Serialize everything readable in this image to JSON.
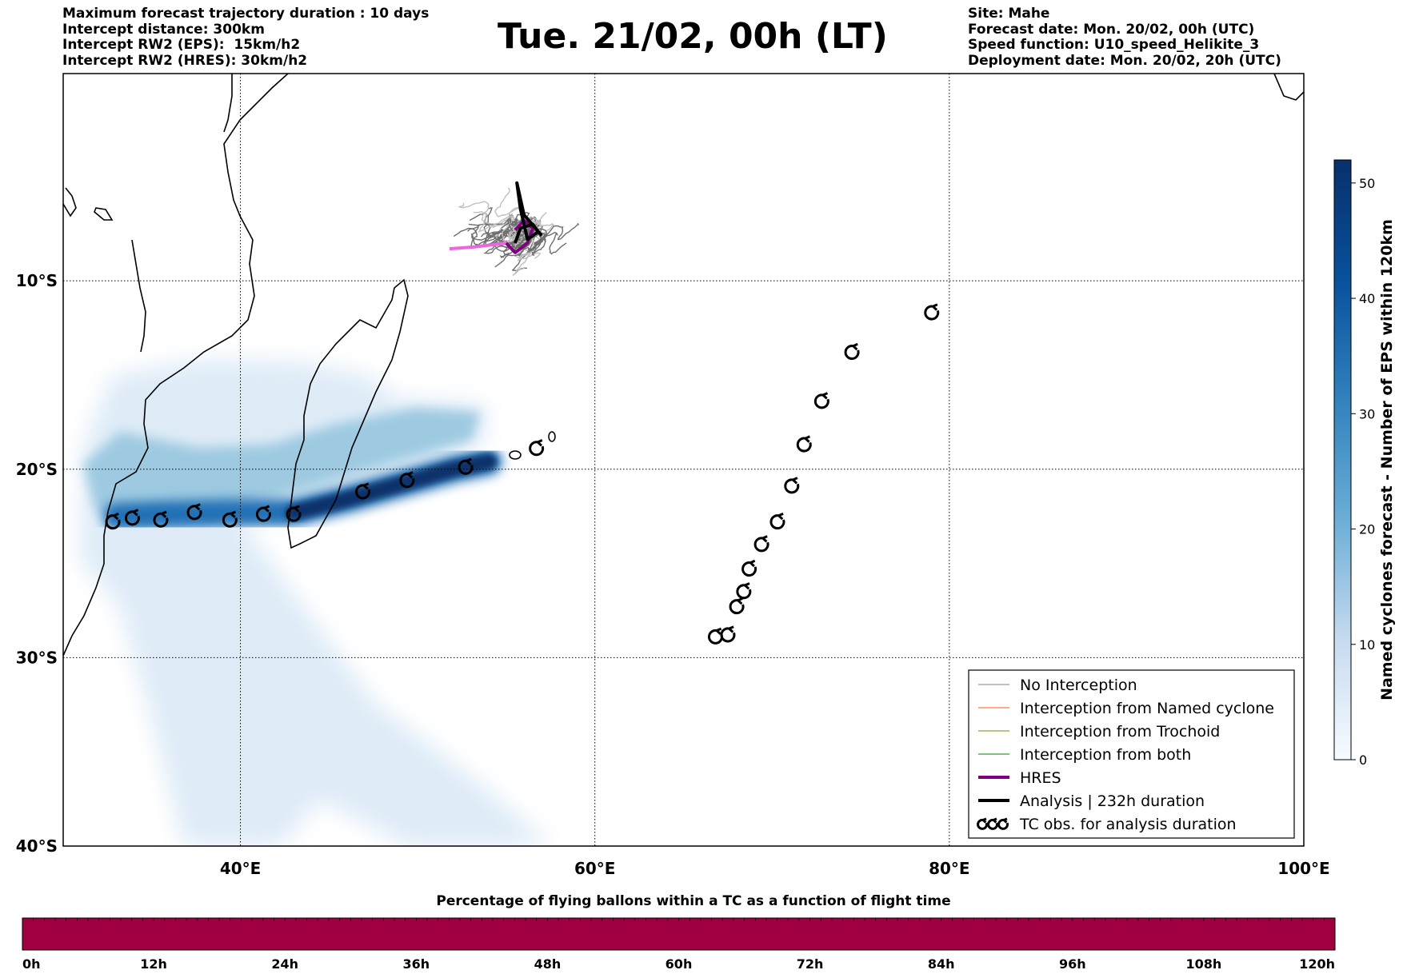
{
  "header_left": {
    "line1": "Maximum forecast trajectory duration : 10 days",
    "line2": "Intercept distance: 300km",
    "line3": "Intercept RW2 (EPS):  15km/h2",
    "line4": "Intercept RW2 (HRES): 30km/h2"
  },
  "title": "Tue. 21/02, 00h (LT)",
  "header_right": {
    "line1": "Site: Mahe",
    "line2": "Forecast date: Mon. 20/02, 00h (UTC)",
    "line3": "Speed function: U10_speed_Helikite_3",
    "line4": "Deployment date: Mon. 20/02, 20h (UTC)"
  },
  "map": {
    "lon_range": [
      30,
      100
    ],
    "lat_range": [
      -40,
      1
    ],
    "lat_gridlines": [
      -10,
      -20,
      -30
    ],
    "lon_gridlines": [
      40,
      60,
      80
    ],
    "lat_labels": [
      {
        "lat": -10,
        "text": "10°S"
      },
      {
        "lat": -20,
        "text": "20°S"
      },
      {
        "lat": -30,
        "text": "30°S"
      },
      {
        "lat": -40,
        "text": "40°S"
      }
    ],
    "lon_labels": [
      {
        "lon": 40,
        "text": "40°E"
      },
      {
        "lon": 60,
        "text": "60°E"
      },
      {
        "lon": 80,
        "text": "80°E"
      },
      {
        "lon": 100,
        "text": "100°E"
      }
    ],
    "colors": {
      "no_interception": "#808080",
      "named_cyclone": "#ff5500",
      "trochoid": "#808000",
      "both": "#008000",
      "hres": "#800080",
      "analysis": "#000000",
      "density_dark": "#08306b",
      "density_light": "#deebf7",
      "flight_bar": "#a0003f"
    },
    "density_track_core": [
      [
        33,
        -22.5
      ],
      [
        36,
        -22.4
      ],
      [
        40,
        -22.3
      ],
      [
        43,
        -22.3
      ],
      [
        46,
        -21.6
      ],
      [
        49,
        -20.8
      ],
      [
        52,
        -20.0
      ],
      [
        54,
        -19.6
      ]
    ],
    "tc_east_track": [
      [
        66.8,
        -28.9
      ],
      [
        67.5,
        -28.8
      ],
      [
        68.0,
        -27.3
      ],
      [
        68.4,
        -26.5
      ],
      [
        68.7,
        -25.3
      ],
      [
        69.4,
        -24.0
      ],
      [
        70.3,
        -22.8
      ],
      [
        71.1,
        -20.9
      ],
      [
        71.8,
        -18.7
      ],
      [
        72.8,
        -16.4
      ],
      [
        74.5,
        -13.8
      ],
      [
        79.0,
        -11.7
      ]
    ],
    "tc_west_track": [
      [
        32.8,
        -22.8
      ],
      [
        33.9,
        -22.6
      ],
      [
        35.5,
        -22.7
      ],
      [
        37.4,
        -22.3
      ],
      [
        39.4,
        -22.7
      ],
      [
        41.3,
        -22.4
      ],
      [
        43.0,
        -22.4
      ],
      [
        46.9,
        -21.2
      ],
      [
        49.4,
        -20.6
      ],
      [
        52.7,
        -19.9
      ],
      [
        56.7,
        -18.9
      ]
    ],
    "hres_track": [
      [
        51.8,
        -8.3
      ],
      [
        53.2,
        -8.2
      ],
      [
        55.0,
        -8.0
      ],
      [
        55.5,
        -8.5
      ],
      [
        56.2,
        -8.0
      ],
      [
        56.5,
        -7.2
      ],
      [
        56.0,
        -6.8
      ],
      [
        55.5,
        -7.3
      ]
    ],
    "analysis_track": [
      [
        55.5,
        -8.0
      ],
      [
        55.8,
        -7.2
      ],
      [
        56.5,
        -7.0
      ],
      [
        56.8,
        -7.4
      ],
      [
        56.2,
        -7.8
      ],
      [
        55.8,
        -6.2
      ],
      [
        55.6,
        -4.8
      ],
      [
        56.0,
        -6.5
      ],
      [
        57.0,
        -7.6
      ]
    ]
  },
  "legend": [
    {
      "label": "No Interception",
      "color": "#808080",
      "width": 1
    },
    {
      "label": "Interception from Named cyclone",
      "color": "#ff5500",
      "width": 1
    },
    {
      "label": "Interception from Trochoid",
      "color": "#808000",
      "width": 1
    },
    {
      "label": "Interception from both",
      "color": "#008000",
      "width": 1
    },
    {
      "label": "HRES",
      "color": "#800080",
      "width": 4
    },
    {
      "label": "Analysis | 232h duration",
      "color": "#000000",
      "width": 4
    },
    {
      "label": "TC obs. for analysis duration",
      "color": "#000000",
      "width": 0
    }
  ],
  "colorbar": {
    "title": "Named cyclones forecast - Number of EPS within 120km",
    "ticks": [
      0,
      10,
      20,
      30,
      40,
      50
    ],
    "max": 52
  },
  "flight_bar": {
    "title": "Percentage of flying ballons within a TC as a function of flight time",
    "ticks": [
      "0h",
      "12h",
      "24h",
      "36h",
      "48h",
      "60h",
      "72h",
      "84h",
      "96h",
      "108h",
      "120h"
    ]
  }
}
